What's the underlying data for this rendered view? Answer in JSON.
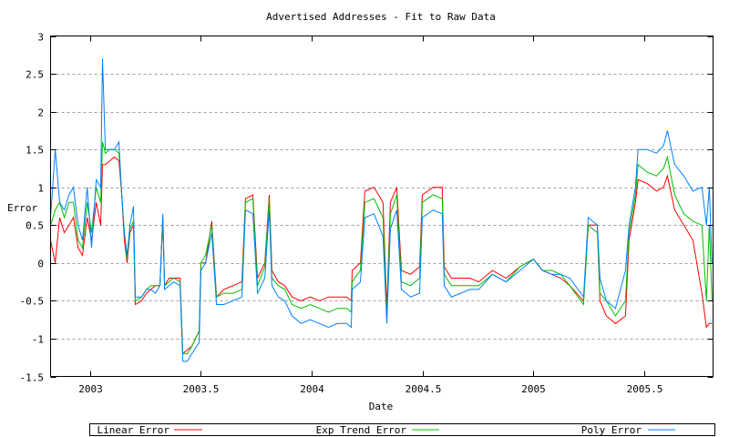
{
  "chart_data": {
    "type": "line",
    "title": "Advertised Addresses -  Fit to Raw Data",
    "xlabel": "Date",
    "ylabel": "Error",
    "xlim": [
      2002.823,
      2005.81
    ],
    "ylim": [
      -1.5,
      3
    ],
    "grid": "horizontal dashed",
    "legend_position": "bottom",
    "xticks": [
      2003,
      2003.5,
      2004,
      2004.5,
      2005,
      2005.5
    ],
    "xtick_labels": [
      "2003",
      "2003.5",
      "2004",
      "2004.5",
      "2005",
      "2005.5"
    ],
    "yticks": [
      -1.5,
      -1,
      -0.5,
      0,
      0.5,
      1,
      1.5,
      2,
      2.5,
      3
    ],
    "ytick_labels": [
      "-1.5",
      "-1",
      "-0.5",
      "0",
      "0.5",
      "1",
      "1.5",
      "2",
      "2.5",
      "3"
    ],
    "x": [
      2002.823,
      2002.844,
      2002.864,
      2002.885,
      2002.906,
      2002.926,
      2002.947,
      2002.967,
      2002.988,
      2003.008,
      2003.029,
      2003.049,
      2003.057,
      2003.07,
      2003.09,
      2003.111,
      2003.131,
      2003.144,
      2003.156,
      2003.168,
      2003.181,
      2003.197,
      2003.205,
      2003.234,
      2003.255,
      2003.275,
      2003.296,
      2003.316,
      2003.329,
      2003.337,
      2003.357,
      2003.378,
      2003.407,
      2003.419,
      2003.439,
      2003.46,
      2003.493,
      2003.501,
      2003.522,
      2003.55,
      2003.571,
      2003.604,
      2003.645,
      2003.686,
      2003.702,
      2003.735,
      2003.756,
      2003.789,
      2003.809,
      2003.821,
      2003.85,
      2003.879,
      2003.912,
      2003.953,
      2003.994,
      2004.035,
      2004.076,
      2004.117,
      2004.158,
      2004.179,
      2004.183,
      2004.22,
      2004.24,
      2004.281,
      2004.322,
      2004.339,
      2004.355,
      2004.384,
      2004.405,
      2004.446,
      2004.487,
      2004.499,
      2004.548,
      2004.589,
      2004.598,
      2004.63,
      2004.672,
      2004.713,
      2004.754,
      2004.815,
      2004.877,
      2004.939,
      2005.0,
      2005.041,
      2005.082,
      2005.123,
      2005.164,
      2005.226,
      2005.247,
      2005.288,
      2005.3,
      2005.329,
      2005.37,
      2005.415,
      2005.431,
      2005.46,
      2005.472,
      2005.513,
      2005.555,
      2005.587,
      2005.604,
      2005.637,
      2005.678,
      2005.719,
      2005.76,
      2005.78,
      2005.793,
      2005.805
    ],
    "series": [
      {
        "name": "Linear Error",
        "color": "#ff0000",
        "values": [
          0.3,
          0.0,
          0.6,
          0.4,
          0.5,
          0.6,
          0.2,
          0.1,
          0.6,
          0.3,
          0.8,
          0.5,
          1.3,
          1.3,
          1.35,
          1.4,
          1.35,
          0.9,
          0.3,
          0.0,
          0.4,
          0.5,
          -0.55,
          -0.5,
          -0.4,
          -0.35,
          -0.3,
          -0.3,
          0.6,
          -0.3,
          -0.2,
          -0.2,
          -0.2,
          -1.2,
          -1.15,
          -1.1,
          -0.9,
          0.0,
          0.0,
          0.55,
          -0.45,
          -0.35,
          -0.3,
          -0.25,
          0.85,
          0.9,
          -0.2,
          0.0,
          0.9,
          -0.1,
          -0.25,
          -0.3,
          -0.45,
          -0.5,
          -0.45,
          -0.5,
          -0.45,
          -0.45,
          -0.45,
          -0.5,
          -0.1,
          0.0,
          0.95,
          1.0,
          0.8,
          -0.6,
          0.8,
          1.0,
          -0.1,
          -0.15,
          -0.05,
          0.9,
          1.0,
          1.0,
          -0.05,
          -0.2,
          -0.2,
          -0.2,
          -0.25,
          -0.1,
          -0.2,
          -0.05,
          0.05,
          -0.1,
          -0.15,
          -0.2,
          -0.3,
          -0.5,
          0.5,
          0.5,
          -0.5,
          -0.7,
          -0.8,
          -0.7,
          0.3,
          0.8,
          1.1,
          1.05,
          0.95,
          1.0,
          1.15,
          0.7,
          0.5,
          0.3,
          -0.4,
          -0.85,
          -0.8,
          -0.8
        ]
      },
      {
        "name": "Exp Trend Error",
        "color": "#00c000",
        "values": [
          0.5,
          0.7,
          0.8,
          0.6,
          0.8,
          0.8,
          0.3,
          0.2,
          0.8,
          0.4,
          1.0,
          0.8,
          1.6,
          1.45,
          1.5,
          1.5,
          1.45,
          0.9,
          0.4,
          0.05,
          0.45,
          0.55,
          -0.5,
          -0.45,
          -0.35,
          -0.3,
          -0.3,
          -0.3,
          0.6,
          -0.3,
          -0.25,
          -0.2,
          -0.25,
          -1.2,
          -1.2,
          -1.1,
          -0.9,
          0.0,
          0.1,
          0.5,
          -0.45,
          -0.4,
          -0.4,
          -0.35,
          0.8,
          0.85,
          -0.3,
          -0.05,
          0.85,
          -0.2,
          -0.3,
          -0.35,
          -0.55,
          -0.6,
          -0.55,
          -0.6,
          -0.65,
          -0.6,
          -0.6,
          -0.65,
          -0.25,
          -0.1,
          0.8,
          0.85,
          0.6,
          -0.7,
          0.65,
          0.9,
          -0.25,
          -0.3,
          -0.2,
          0.8,
          0.9,
          0.85,
          -0.15,
          -0.3,
          -0.3,
          -0.3,
          -0.3,
          -0.15,
          -0.25,
          -0.05,
          0.05,
          -0.1,
          -0.1,
          -0.15,
          -0.3,
          -0.55,
          0.5,
          0.4,
          -0.4,
          -0.5,
          -0.7,
          -0.5,
          0.4,
          0.9,
          1.3,
          1.2,
          1.15,
          1.25,
          1.4,
          0.9,
          0.65,
          0.55,
          0.5,
          -0.5,
          0.5,
          -0.5
        ]
      },
      {
        "name": "Poly Error",
        "color": "#0080ff",
        "values": [
          0.6,
          1.5,
          0.8,
          0.7,
          0.9,
          1.0,
          0.5,
          0.3,
          1.0,
          0.2,
          1.1,
          1.0,
          2.7,
          1.5,
          1.5,
          1.5,
          1.6,
          0.9,
          0.4,
          0.1,
          0.5,
          0.75,
          -0.45,
          -0.45,
          -0.35,
          -0.35,
          -0.4,
          -0.3,
          0.65,
          -0.35,
          -0.3,
          -0.25,
          -0.3,
          -1.3,
          -1.3,
          -1.2,
          -1.05,
          -0.1,
          0.0,
          0.4,
          -0.55,
          -0.55,
          -0.5,
          -0.45,
          0.7,
          0.65,
          -0.4,
          -0.2,
          0.7,
          -0.3,
          -0.45,
          -0.5,
          -0.7,
          -0.8,
          -0.75,
          -0.8,
          -0.85,
          -0.8,
          -0.8,
          -0.85,
          -0.35,
          -0.25,
          0.6,
          0.65,
          0.35,
          -0.8,
          0.45,
          0.7,
          -0.35,
          -0.45,
          -0.4,
          0.6,
          0.7,
          0.65,
          -0.3,
          -0.45,
          -0.4,
          -0.35,
          -0.35,
          -0.15,
          -0.25,
          -0.1,
          0.05,
          -0.1,
          -0.15,
          -0.15,
          -0.2,
          -0.45,
          0.6,
          0.5,
          -0.2,
          -0.5,
          -0.6,
          -0.1,
          0.5,
          1.0,
          1.5,
          1.5,
          1.45,
          1.55,
          1.75,
          1.3,
          1.15,
          0.95,
          1.0,
          0.5,
          1.0,
          0.0
        ]
      }
    ]
  }
}
